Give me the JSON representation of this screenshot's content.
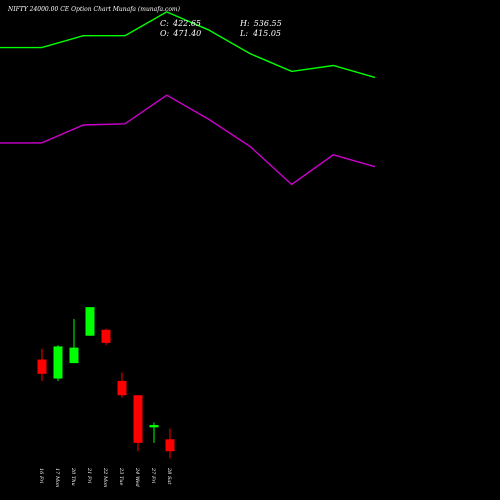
{
  "header": {
    "title": "NIFTY 24000.00  CE Option  Chart Munafa (munafa.com)",
    "close_label": "C:",
    "close_value": "422.65",
    "open_label": "O:",
    "open_value": "471.40",
    "high_label": "H:",
    "high_value": "536.55",
    "low_label": "L:",
    "low_value": "415.05"
  },
  "colors": {
    "background": "#000000",
    "upper_band": "#00ff00",
    "lower_band": "#cc00cc",
    "bullish": "#00ff00",
    "bearish": "#ff0000",
    "text": "#ffffff"
  },
  "chart_data": {
    "type": "candlestick",
    "x_tick_labels": [
      "16 Fri",
      "17 Mon",
      "20 Thu",
      "21 Fri",
      "22 Mon",
      "23 Tue",
      "24 Wed",
      "27 Fri",
      "28 Sat"
    ],
    "candles": [
      {
        "x": "16 Fri",
        "open": 498,
        "high": 507,
        "low": 480,
        "close": 486,
        "color": "red"
      },
      {
        "x": "17 Mon",
        "open": 482,
        "high": 510,
        "low": 480,
        "close": 509,
        "color": "green"
      },
      {
        "x": "20 Thu",
        "open": 495,
        "high": 532,
        "low": 495,
        "close": 508,
        "color": "green"
      },
      {
        "x": "21 Fri",
        "open": 518,
        "high": 542,
        "low": 518,
        "close": 542,
        "color": "green"
      },
      {
        "x": "22 Mon",
        "open": 523,
        "high": 524,
        "low": 510,
        "close": 512,
        "color": "red"
      },
      {
        "x": "23 Tue",
        "open": 480,
        "high": 487,
        "low": 466,
        "close": 468,
        "color": "red"
      },
      {
        "x": "24 Wed",
        "open": 468,
        "high": 468,
        "low": 421,
        "close": 428,
        "color": "red"
      },
      {
        "x": "27 Fri",
        "open": 441,
        "high": 445,
        "low": 428,
        "close": 443,
        "color": "green"
      },
      {
        "x": "28 Sat",
        "open": 431,
        "high": 440,
        "low": 415,
        "close": 421,
        "color": "red"
      }
    ],
    "upper_band": [
      760,
      760,
      770,
      770,
      790,
      775,
      755,
      740,
      745,
      735
    ],
    "lower_band": [
      680,
      680,
      695,
      696,
      720,
      700,
      677,
      645,
      670,
      660
    ],
    "ylim": [
      380,
      800
    ]
  }
}
